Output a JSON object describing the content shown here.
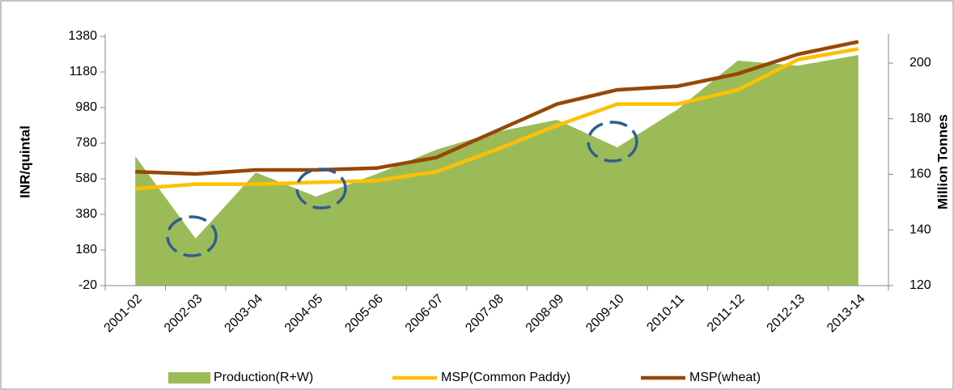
{
  "chart_data": {
    "type": "combo",
    "categories": [
      "2001-02",
      "2002-03",
      "2003-04",
      "2004-05",
      "2005-06",
      "2006-07",
      "2007-08",
      "2008-09",
      "2009-10",
      "2010-11",
      "2011-12",
      "2012-13",
      "2013-14"
    ],
    "y_label": "INR/quintal",
    "y2_label": "Million Tonnes",
    "ylim": [
      -20,
      1380
    ],
    "yticks": [
      -20,
      180,
      380,
      580,
      780,
      980,
      1180,
      1380
    ],
    "y2lim": [
      120,
      209.6
    ],
    "y2ticks": [
      120,
      140,
      160,
      180,
      200
    ],
    "legend": "bottom",
    "series": [
      {
        "name": "Production(R+W)",
        "kind": "area",
        "axis": "y2",
        "color": "#9bbb59",
        "values": [
          166.5,
          136.9,
          160.7,
          152,
          160.1,
          168.9,
          175.3,
          179.6,
          169.7,
          183.4,
          200.9,
          199.1,
          202.9
        ]
      },
      {
        "name": "MSP(Common Paddy)",
        "kind": "line",
        "color": "#ffc000",
        "values": [
          525,
          550,
          550,
          560,
          570,
          620,
          745,
          880,
          1000,
          1000,
          1080,
          1250,
          1310
        ]
      },
      {
        "name": "MSP(wheat)",
        "kind": "line",
        "color": "#974706",
        "values": [
          620,
          607,
          630,
          630,
          640,
          700,
          850,
          1000,
          1080,
          1100,
          1170,
          1280,
          1350
        ]
      }
    ]
  }
}
